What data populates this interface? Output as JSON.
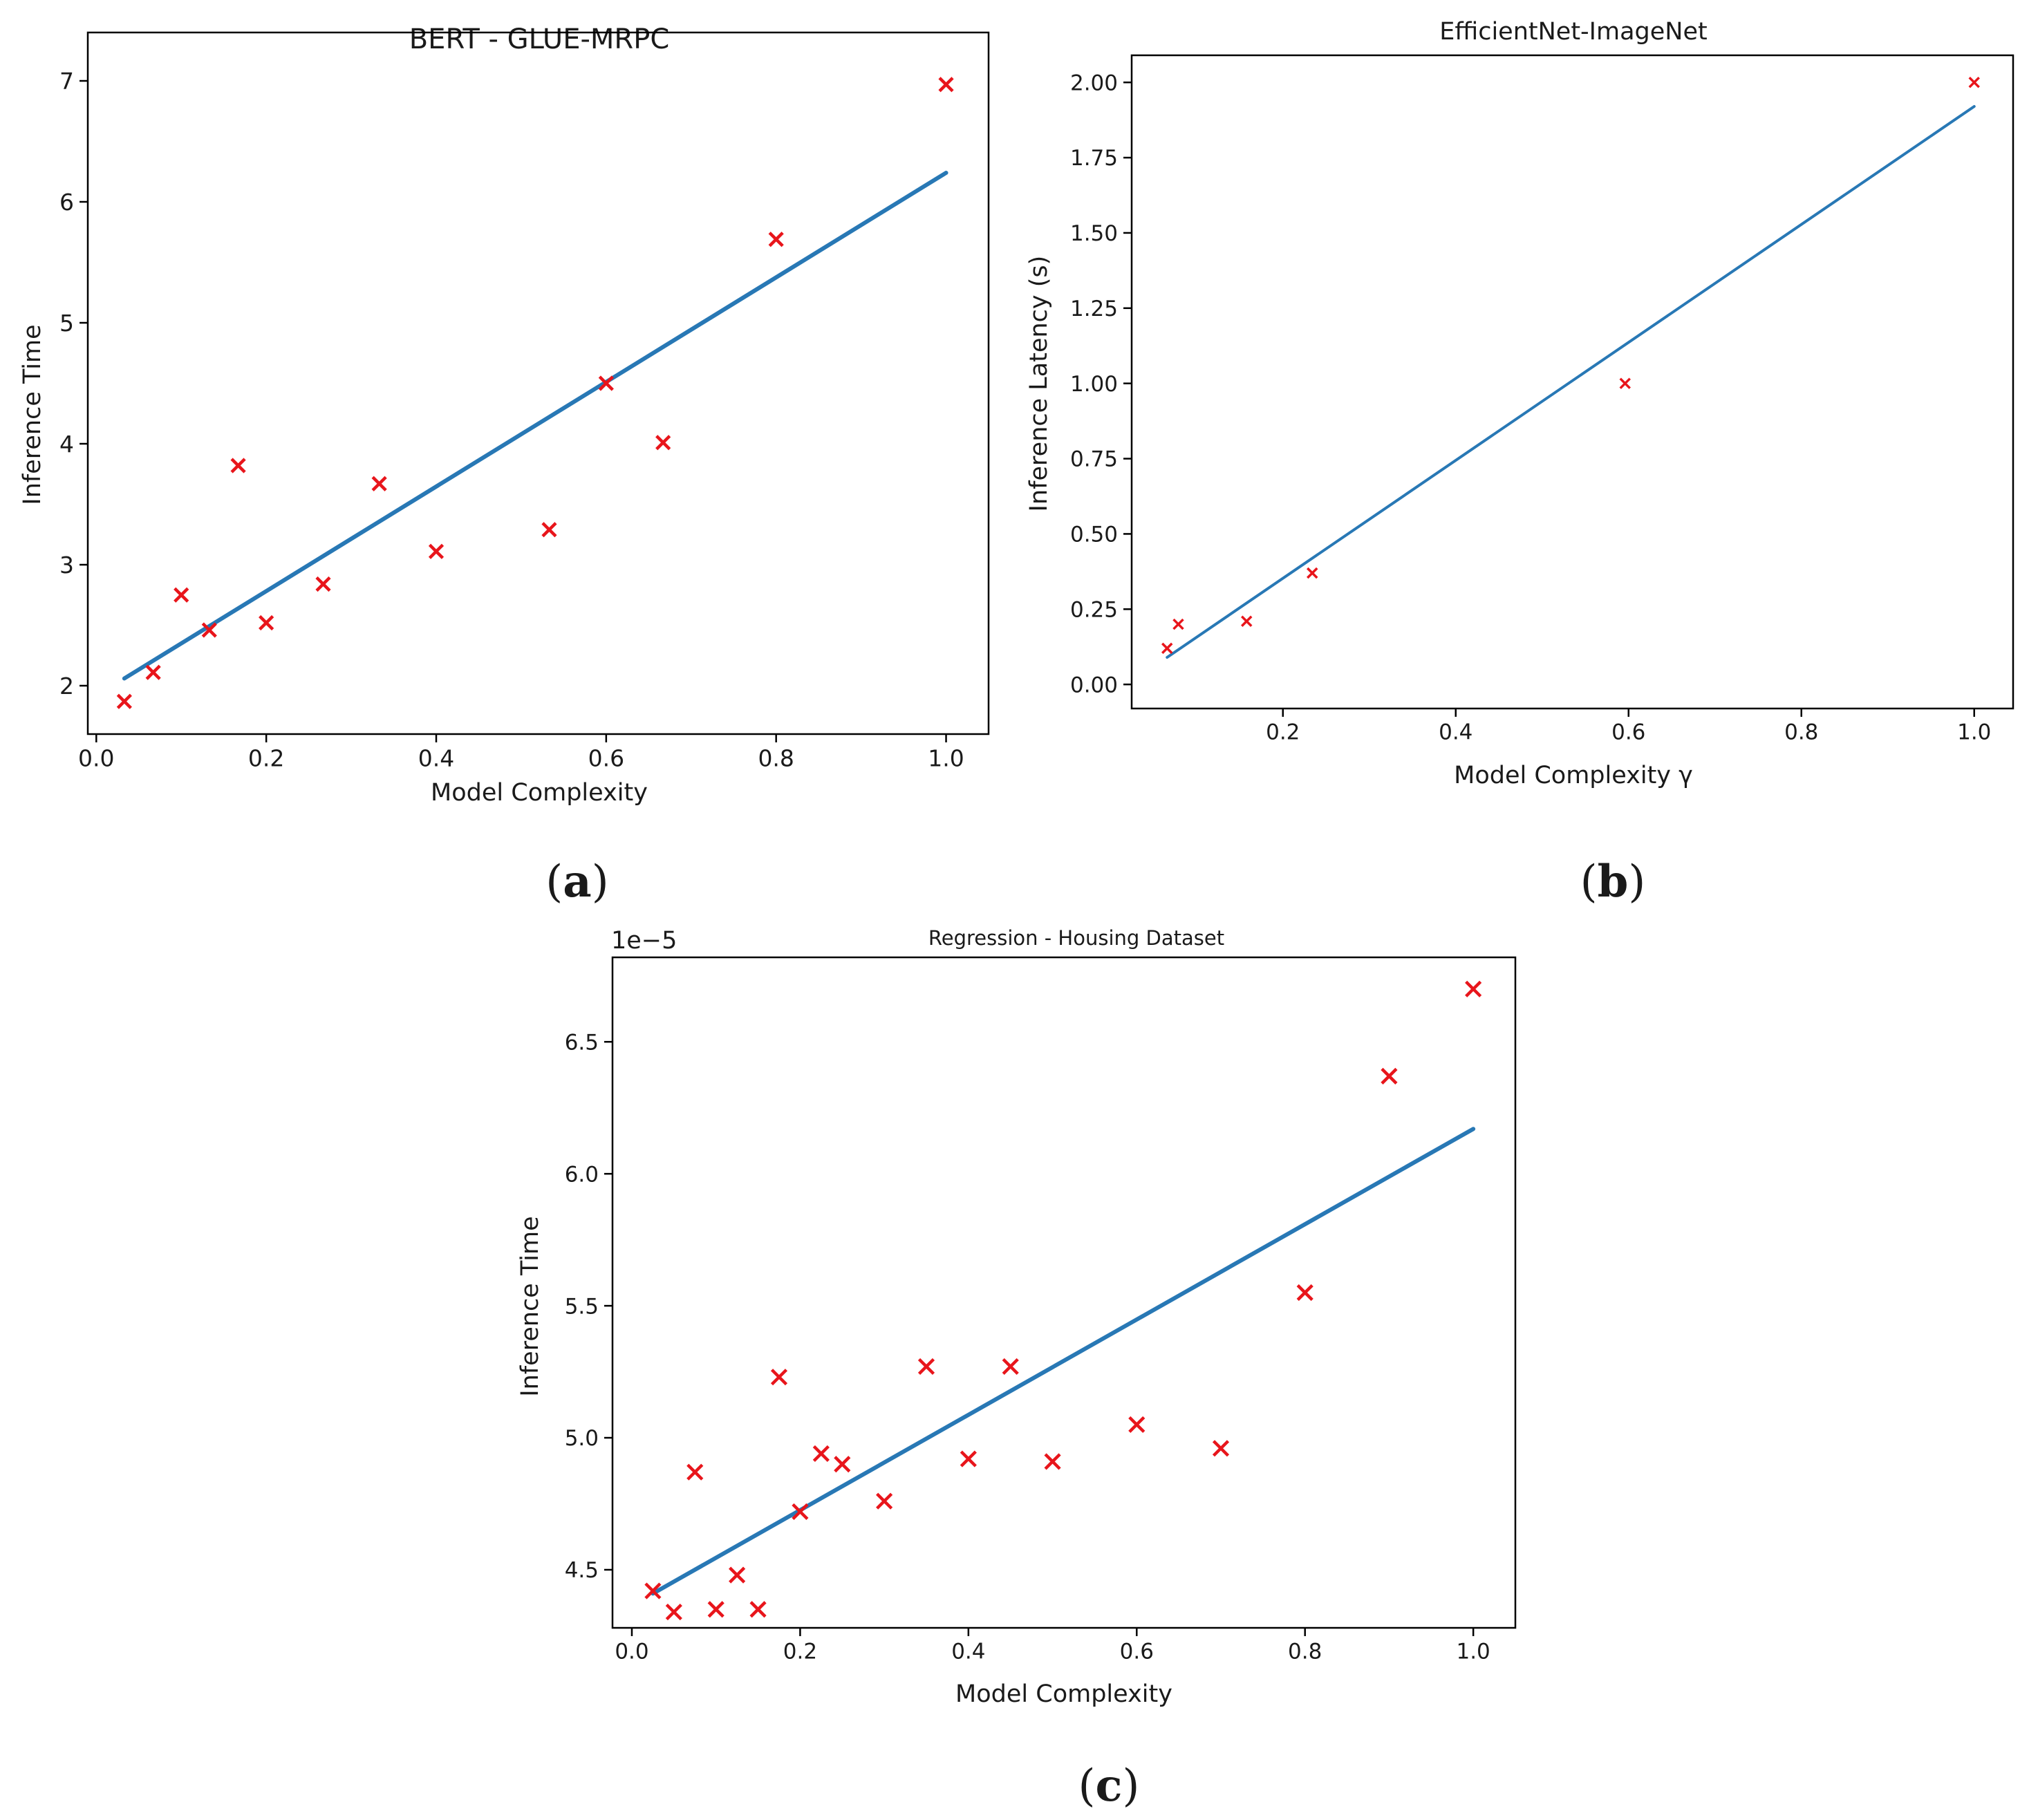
{
  "chart_data": [
    {
      "id": "a",
      "panel_label": "a",
      "type": "scatter",
      "title": "BERT - GLUE-MRPC",
      "xlabel": "Model Complexity",
      "ylabel": "Inference Time",
      "xlim": [
        -0.01,
        1.05
      ],
      "ylim": [
        1.6,
        7.4
      ],
      "xticks": [
        0.0,
        0.2,
        0.4,
        0.6,
        0.8,
        1.0
      ],
      "xtick_labels": [
        "0.0",
        "0.2",
        "0.4",
        "0.6",
        "0.8",
        "1.0"
      ],
      "yticks": [
        2,
        3,
        4,
        5,
        6,
        7
      ],
      "ytick_labels": [
        "2",
        "3",
        "4",
        "5",
        "6",
        "7"
      ],
      "points": [
        {
          "x": 0.033,
          "y": 1.87
        },
        {
          "x": 0.067,
          "y": 2.11
        },
        {
          "x": 0.1,
          "y": 2.75
        },
        {
          "x": 0.133,
          "y": 2.46
        },
        {
          "x": 0.167,
          "y": 3.82
        },
        {
          "x": 0.2,
          "y": 2.52
        },
        {
          "x": 0.267,
          "y": 2.84
        },
        {
          "x": 0.333,
          "y": 3.67
        },
        {
          "x": 0.4,
          "y": 3.11
        },
        {
          "x": 0.533,
          "y": 3.29
        },
        {
          "x": 0.6,
          "y": 4.5
        },
        {
          "x": 0.667,
          "y": 4.01
        },
        {
          "x": 0.8,
          "y": 5.69
        },
        {
          "x": 1.0,
          "y": 6.97
        }
      ],
      "fit_line": [
        {
          "x": 0.033,
          "y": 2.06
        },
        {
          "x": 1.0,
          "y": 6.24
        }
      ],
      "colors": {
        "points": "#e8151b",
        "line": "#2878b5"
      }
    },
    {
      "id": "b",
      "panel_label": "b",
      "type": "scatter",
      "title": "EfficientNet-ImageNet",
      "xlabel": "Model Complexity γ",
      "ylabel": "Inference Latency (s)",
      "xlim": [
        0.025,
        1.045
      ],
      "ylim": [
        -0.08,
        2.09
      ],
      "xticks": [
        0.2,
        0.4,
        0.6,
        0.8,
        1.0
      ],
      "xtick_labels": [
        "0.2",
        "0.4",
        "0.6",
        "0.8",
        "1.0"
      ],
      "yticks": [
        0.0,
        0.25,
        0.5,
        0.75,
        1.0,
        1.25,
        1.5,
        1.75,
        2.0
      ],
      "ytick_labels": [
        "0.00",
        "0.25",
        "0.50",
        "0.75",
        "1.00",
        "1.25",
        "1.50",
        "1.75",
        "2.00"
      ],
      "points": [
        {
          "x": 0.066,
          "y": 0.12
        },
        {
          "x": 0.079,
          "y": 0.2
        },
        {
          "x": 0.158,
          "y": 0.21
        },
        {
          "x": 0.234,
          "y": 0.37
        },
        {
          "x": 0.596,
          "y": 1.0
        },
        {
          "x": 1.0,
          "y": 2.0
        }
      ],
      "fit_line": [
        {
          "x": 0.066,
          "y": 0.09
        },
        {
          "x": 1.0,
          "y": 1.92
        }
      ],
      "colors": {
        "points": "#e8151b",
        "line": "#2878b5"
      }
    },
    {
      "id": "c",
      "panel_label": "c",
      "type": "scatter",
      "title": "Regression - Housing Dataset",
      "xlabel": "Model Complexity",
      "ylabel": "Inference Time",
      "offset_label": "1e−5",
      "xlim": [
        -0.023,
        1.05
      ],
      "ylim": [
        4.28,
        6.82
      ],
      "xticks": [
        0.0,
        0.2,
        0.4,
        0.6,
        0.8,
        1.0
      ],
      "xtick_labels": [
        "0.0",
        "0.2",
        "0.4",
        "0.6",
        "0.8",
        "1.0"
      ],
      "yticks": [
        4.5,
        5.0,
        5.5,
        6.0,
        6.5
      ],
      "ytick_labels": [
        "4.5",
        "5.0",
        "5.5",
        "6.0",
        "6.5"
      ],
      "points": [
        {
          "x": 0.025,
          "y": 4.42
        },
        {
          "x": 0.05,
          "y": 4.34
        },
        {
          "x": 0.075,
          "y": 4.87
        },
        {
          "x": 0.1,
          "y": 4.35
        },
        {
          "x": 0.125,
          "y": 4.48
        },
        {
          "x": 0.15,
          "y": 4.35
        },
        {
          "x": 0.175,
          "y": 5.23
        },
        {
          "x": 0.2,
          "y": 4.72
        },
        {
          "x": 0.225,
          "y": 4.94
        },
        {
          "x": 0.25,
          "y": 4.9
        },
        {
          "x": 0.3,
          "y": 4.76
        },
        {
          "x": 0.35,
          "y": 5.27
        },
        {
          "x": 0.4,
          "y": 4.92
        },
        {
          "x": 0.45,
          "y": 5.27
        },
        {
          "x": 0.5,
          "y": 4.91
        },
        {
          "x": 0.6,
          "y": 5.05
        },
        {
          "x": 0.7,
          "y": 4.96
        },
        {
          "x": 0.8,
          "y": 5.55
        },
        {
          "x": 0.9,
          "y": 6.37
        },
        {
          "x": 1.0,
          "y": 6.7
        }
      ],
      "fit_line": [
        {
          "x": 0.025,
          "y": 4.41
        },
        {
          "x": 1.0,
          "y": 6.17
        }
      ],
      "colors": {
        "points": "#e8151b",
        "line": "#2878b5"
      }
    }
  ]
}
